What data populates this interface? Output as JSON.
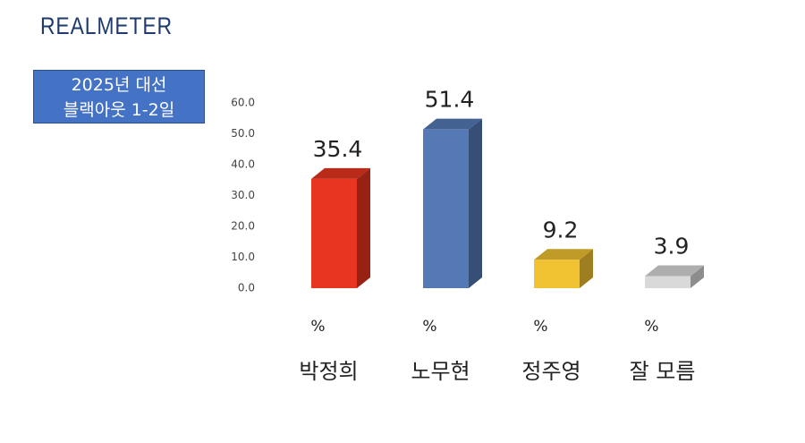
{
  "brand": "REALMETER",
  "chart_data": {
    "type": "bar3d",
    "title": "2025년 대선\n블랙아웃 1-2일",
    "categories": [
      "박정희",
      "노무현",
      "정주영",
      "잘 모름"
    ],
    "values": [
      35.4,
      51.4,
      9.2,
      3.9
    ],
    "colors": [
      "#e8351f",
      "#5479b5",
      "#f1c232",
      "#d9d9d9"
    ],
    "unit": "%",
    "ylim": [
      0,
      60
    ],
    "yticks": [
      {
        "value": 0,
        "label": "0.0"
      },
      {
        "value": 10,
        "label": "10.0"
      },
      {
        "value": 20,
        "label": "20.0"
      },
      {
        "value": 30,
        "label": "30.0"
      },
      {
        "value": 40,
        "label": "40.0"
      },
      {
        "value": 50,
        "label": "50.0"
      },
      {
        "value": 60,
        "label": "60.0"
      }
    ],
    "grid": false
  }
}
